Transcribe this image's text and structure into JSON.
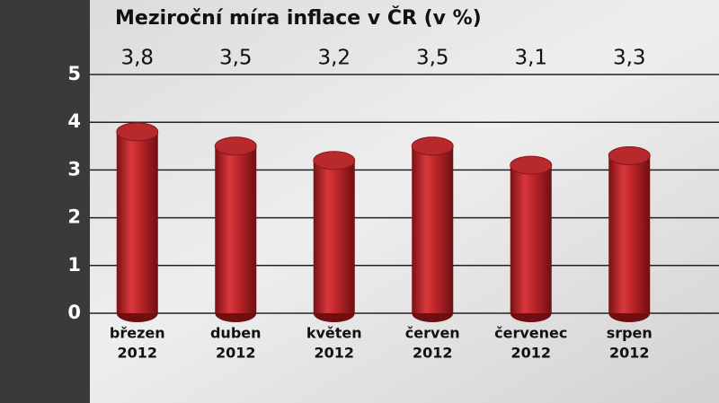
{
  "chart_data": {
    "type": "bar",
    "title": "Meziroční míra inflace v ČR (v %)",
    "categories": [
      [
        "březen",
        "2012"
      ],
      [
        "duben",
        "2012"
      ],
      [
        "květen",
        "2012"
      ],
      [
        "červen",
        "2012"
      ],
      [
        "červenec",
        "2012"
      ],
      [
        "srpen",
        "2012"
      ]
    ],
    "values": [
      3.8,
      3.5,
      3.2,
      3.5,
      3.1,
      3.3
    ],
    "value_labels": [
      "3,8",
      "3,5",
      "3,2",
      "3,5",
      "3,1",
      "3,3"
    ],
    "color": "#c0262b",
    "ylim": [
      0,
      5
    ],
    "yticks": [
      0,
      1,
      2,
      3,
      4,
      5
    ],
    "grid": true
  }
}
